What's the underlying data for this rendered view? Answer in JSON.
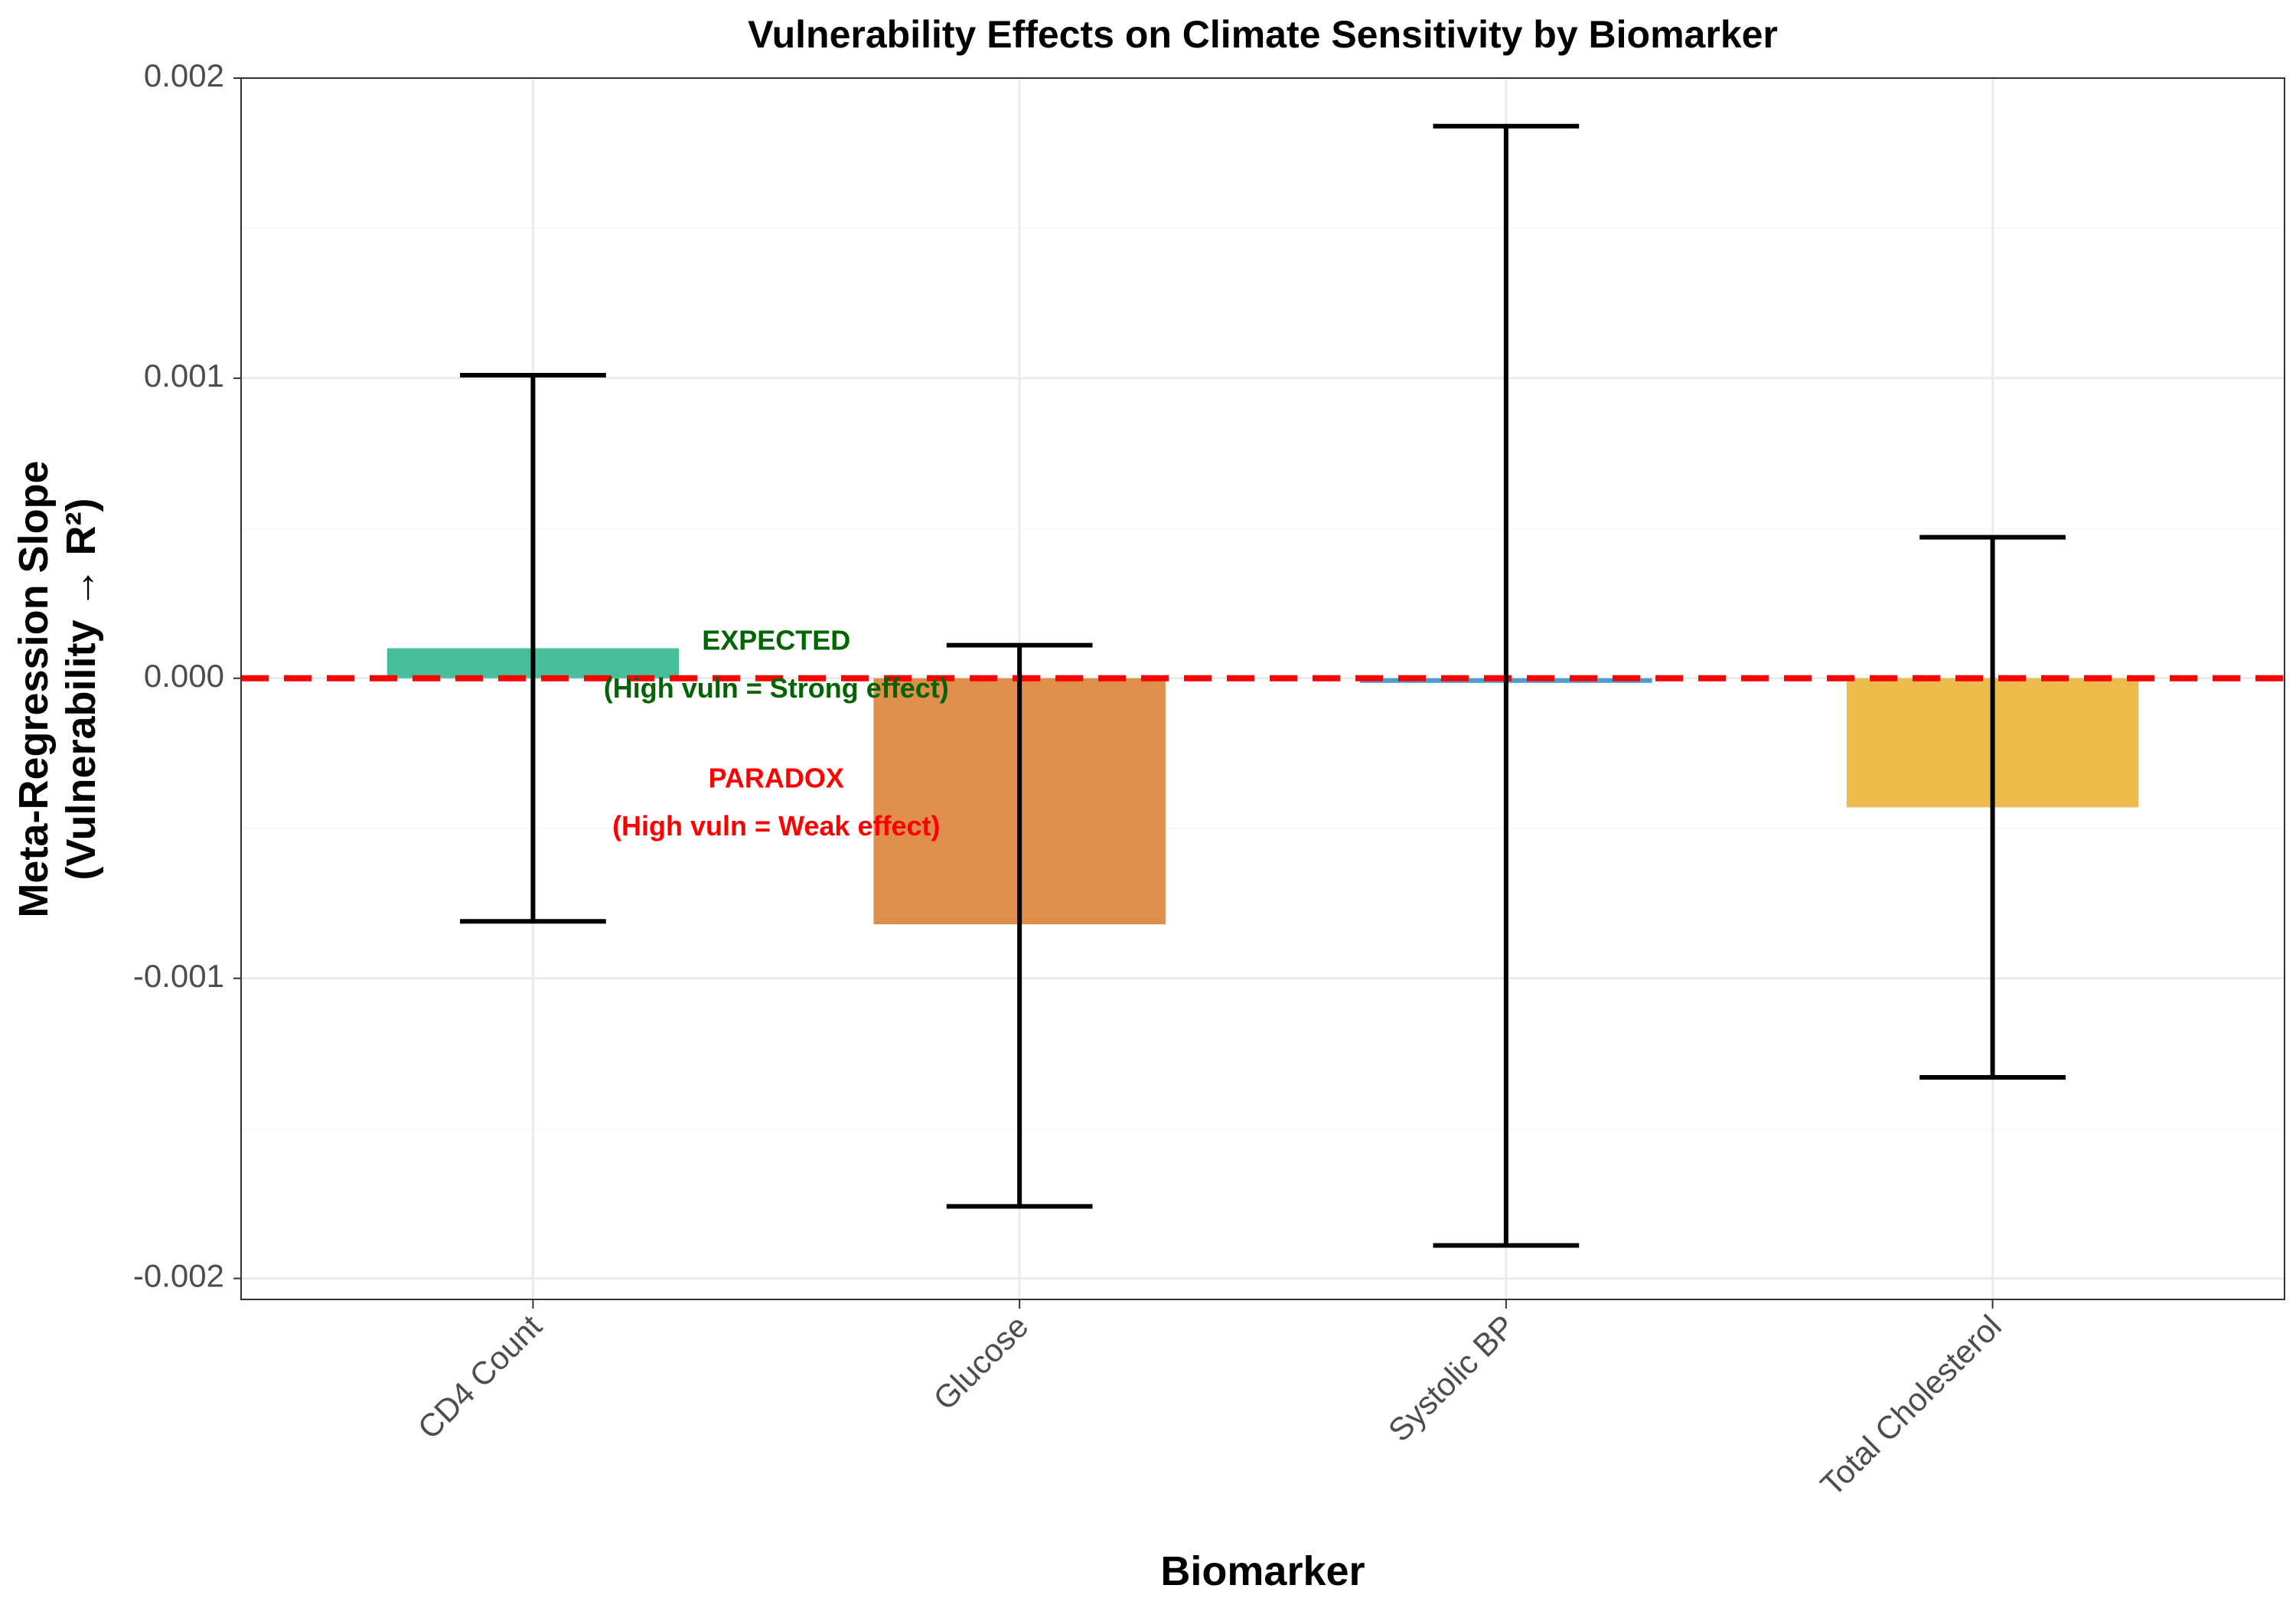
{
  "chart_data": {
    "type": "bar",
    "title": "Vulnerability Effects on Climate Sensitivity by Biomarker",
    "xlabel": "Biomarker",
    "ylabel_lines": [
      "Meta-Regression Slope",
      "(Vulnerability → R²)"
    ],
    "categories": [
      "CD4 Count",
      "Glucose",
      "Systolic BP",
      "Total Cholesterol"
    ],
    "values": [
      0.0001,
      -0.00082,
      -1e-05,
      -0.00043
    ],
    "error_low": [
      -0.00081,
      -0.00176,
      -0.00189,
      -0.00133
    ],
    "error_high": [
      0.00101,
      0.00011,
      0.00184,
      0.00047
    ],
    "bar_colors": [
      "#48BF9B",
      "#E08E4C",
      "#4B9CCF",
      "#ECBB4C"
    ],
    "ylim": [
      -0.00207,
      0.002
    ],
    "y_ticks": [
      -0.002,
      -0.001,
      0.0,
      0.001,
      0.002
    ],
    "y_tick_labels": [
      "-0.002",
      "-0.001",
      "0.000",
      "0.001",
      "0.002"
    ],
    "reference_line": {
      "y": 0,
      "color": "#FF0000",
      "style": "dashed"
    },
    "grid": true,
    "legend": "none",
    "annotations": [
      {
        "text": "EXPECTED",
        "x": 1.5,
        "y": 0.00012,
        "color": "#006400"
      },
      {
        "text": "(High vuln = Strong effect)",
        "x": 1.5,
        "y": -4e-05,
        "color": "#006400"
      },
      {
        "text": "PARADOX",
        "x": 1.5,
        "y": -0.00034,
        "color": "#FF0000"
      },
      {
        "text": "(High vuln = Weak effect)",
        "x": 1.5,
        "y": -0.0005,
        "color": "#FF0000"
      }
    ]
  }
}
